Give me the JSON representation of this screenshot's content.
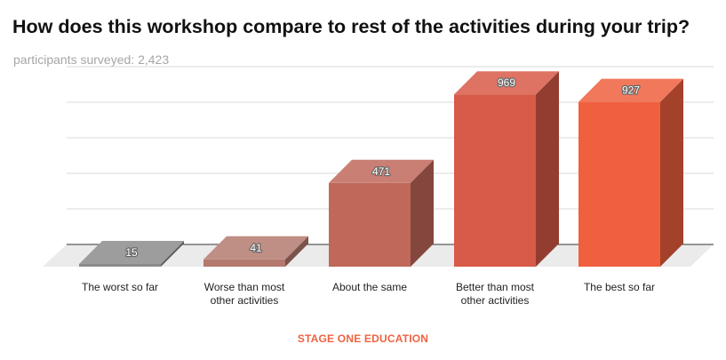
{
  "chart_data": {
    "type": "bar",
    "title": "How does this workshop compare to rest of the activities during your trip?",
    "subtitle": "participants surveyed: 2,423",
    "categories": [
      "The worst so far",
      "Worse than most other activities",
      "About the same",
      "Better than most other activities",
      "The best so far"
    ],
    "values": [
      15,
      41,
      471,
      969,
      927
    ],
    "xlabel": "",
    "ylabel": "",
    "ylim": [
      0,
      1000
    ],
    "grid": true,
    "legend": "none",
    "colors": [
      "#8c8c8c",
      "#b47a6e",
      "#c0685a",
      "#d85a48",
      "#f0603f"
    ]
  },
  "footer": "STAGE ONE EDUCATION"
}
